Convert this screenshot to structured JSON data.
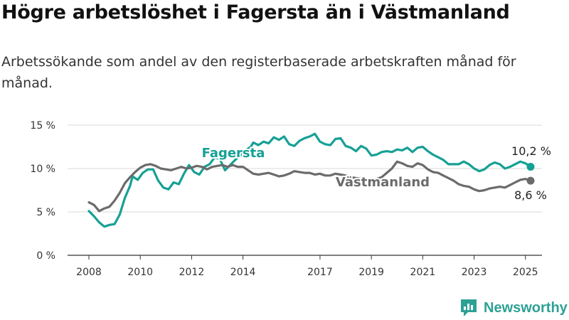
{
  "title": "Högre arbetslöshet i Fagersta än i Västmanland",
  "subtitle": "Arbetssökande som andel av den registerbaserade arbetskraften månad för månad.",
  "brand": {
    "name": "Newsworthy",
    "color": "#2ea195"
  },
  "chart_data": {
    "type": "line",
    "x_ticks": [
      "2008",
      "2010",
      "2012",
      "2014",
      "2017",
      "2019",
      "2021",
      "2023",
      "2025"
    ],
    "y_ticks": [
      "0 %",
      "5 %",
      "10 %",
      "15 %"
    ],
    "ylim": [
      0,
      15
    ],
    "grid": true,
    "series": [
      {
        "name": "Fagersta",
        "color": "#16a095",
        "end_label": "10,2 %",
        "points": [
          [
            2008.0,
            5.1
          ],
          [
            2008.2,
            4.5
          ],
          [
            2008.4,
            3.8
          ],
          [
            2008.6,
            3.3
          ],
          [
            2008.8,
            3.5
          ],
          [
            2009.0,
            3.6
          ],
          [
            2009.2,
            4.7
          ],
          [
            2009.4,
            6.6
          ],
          [
            2009.6,
            8.0
          ],
          [
            2009.7,
            9.1
          ],
          [
            2009.9,
            8.7
          ],
          [
            2010.1,
            9.5
          ],
          [
            2010.3,
            9.9
          ],
          [
            2010.5,
            9.9
          ],
          [
            2010.7,
            8.6
          ],
          [
            2010.9,
            7.8
          ],
          [
            2011.1,
            7.6
          ],
          [
            2011.3,
            8.4
          ],
          [
            2011.5,
            8.2
          ],
          [
            2011.7,
            9.4
          ],
          [
            2011.9,
            10.4
          ],
          [
            2012.1,
            9.6
          ],
          [
            2012.3,
            9.3
          ],
          [
            2012.5,
            10.2
          ],
          [
            2012.7,
            10.5
          ],
          [
            2012.9,
            11.3
          ],
          [
            2013.1,
            11.1
          ],
          [
            2013.3,
            9.8
          ],
          [
            2013.5,
            10.4
          ],
          [
            2013.7,
            11.0
          ],
          [
            2013.9,
            11.5
          ],
          [
            2014.1,
            12.1
          ],
          [
            2014.3,
            12.5
          ],
          [
            2014.4,
            13.0
          ],
          [
            2014.6,
            12.7
          ],
          [
            2014.8,
            13.1
          ],
          [
            2015.0,
            12.9
          ],
          [
            2015.2,
            13.6
          ],
          [
            2015.4,
            13.3
          ],
          [
            2015.6,
            13.7
          ],
          [
            2015.8,
            12.8
          ],
          [
            2016.0,
            12.6
          ],
          [
            2016.2,
            13.2
          ],
          [
            2016.4,
            13.5
          ],
          [
            2016.6,
            13.7
          ],
          [
            2016.8,
            14.0
          ],
          [
            2017.0,
            13.1
          ],
          [
            2017.2,
            12.8
          ],
          [
            2017.4,
            12.7
          ],
          [
            2017.6,
            13.4
          ],
          [
            2017.8,
            13.5
          ],
          [
            2018.0,
            12.6
          ],
          [
            2018.2,
            12.4
          ],
          [
            2018.4,
            12.0
          ],
          [
            2018.6,
            12.6
          ],
          [
            2018.8,
            12.3
          ],
          [
            2019.0,
            11.5
          ],
          [
            2019.2,
            11.6
          ],
          [
            2019.4,
            11.9
          ],
          [
            2019.6,
            12.0
          ],
          [
            2019.8,
            11.9
          ],
          [
            2020.0,
            12.2
          ],
          [
            2020.2,
            12.1
          ],
          [
            2020.4,
            12.4
          ],
          [
            2020.6,
            11.9
          ],
          [
            2020.8,
            12.4
          ],
          [
            2021.0,
            12.5
          ],
          [
            2021.2,
            12.0
          ],
          [
            2021.4,
            11.6
          ],
          [
            2021.6,
            11.3
          ],
          [
            2021.8,
            11.0
          ],
          [
            2022.0,
            10.5
          ],
          [
            2022.2,
            10.5
          ],
          [
            2022.4,
            10.5
          ],
          [
            2022.6,
            10.8
          ],
          [
            2022.8,
            10.5
          ],
          [
            2023.0,
            10.0
          ],
          [
            2023.2,
            9.7
          ],
          [
            2023.4,
            9.9
          ],
          [
            2023.6,
            10.4
          ],
          [
            2023.8,
            10.7
          ],
          [
            2024.0,
            10.5
          ],
          [
            2024.2,
            10.0
          ],
          [
            2024.4,
            10.2
          ],
          [
            2024.6,
            10.5
          ],
          [
            2024.8,
            10.8
          ],
          [
            2025.0,
            10.6
          ],
          [
            2025.2,
            10.2
          ]
        ]
      },
      {
        "name": "Västmanland",
        "color": "#6b6b6b",
        "end_label": "8,6 %",
        "points": [
          [
            2008.0,
            6.1
          ],
          [
            2008.2,
            5.8
          ],
          [
            2008.4,
            5.1
          ],
          [
            2008.6,
            5.4
          ],
          [
            2008.8,
            5.6
          ],
          [
            2009.0,
            6.3
          ],
          [
            2009.2,
            7.2
          ],
          [
            2009.4,
            8.3
          ],
          [
            2009.6,
            9.0
          ],
          [
            2009.8,
            9.6
          ],
          [
            2010.0,
            10.1
          ],
          [
            2010.2,
            10.4
          ],
          [
            2010.4,
            10.5
          ],
          [
            2010.6,
            10.3
          ],
          [
            2010.8,
            10.0
          ],
          [
            2011.0,
            9.9
          ],
          [
            2011.2,
            9.8
          ],
          [
            2011.4,
            10.0
          ],
          [
            2011.6,
            10.2
          ],
          [
            2011.8,
            10.0
          ],
          [
            2012.0,
            10.1
          ],
          [
            2012.2,
            10.3
          ],
          [
            2012.4,
            10.2
          ],
          [
            2012.6,
            9.9
          ],
          [
            2012.8,
            10.2
          ],
          [
            2013.0,
            10.3
          ],
          [
            2013.2,
            10.4
          ],
          [
            2013.4,
            10.2
          ],
          [
            2013.6,
            10.4
          ],
          [
            2013.8,
            10.2
          ],
          [
            2014.0,
            10.2
          ],
          [
            2014.2,
            9.8
          ],
          [
            2014.4,
            9.4
          ],
          [
            2014.6,
            9.3
          ],
          [
            2014.8,
            9.4
          ],
          [
            2015.0,
            9.5
          ],
          [
            2015.2,
            9.3
          ],
          [
            2015.4,
            9.1
          ],
          [
            2015.6,
            9.2
          ],
          [
            2015.8,
            9.4
          ],
          [
            2016.0,
            9.7
          ],
          [
            2016.2,
            9.6
          ],
          [
            2016.4,
            9.5
          ],
          [
            2016.6,
            9.5
          ],
          [
            2016.8,
            9.3
          ],
          [
            2017.0,
            9.4
          ],
          [
            2017.2,
            9.2
          ],
          [
            2017.4,
            9.2
          ],
          [
            2017.6,
            9.4
          ],
          [
            2017.8,
            9.3
          ],
          [
            2018.0,
            9.2
          ],
          [
            2018.2,
            9.0
          ],
          [
            2018.4,
            8.9
          ],
          [
            2018.6,
            8.8
          ],
          [
            2018.8,
            8.7
          ],
          [
            2019.0,
            8.6
          ],
          [
            2019.2,
            8.8
          ],
          [
            2019.4,
            9.0
          ],
          [
            2019.6,
            9.5
          ],
          [
            2019.8,
            10.0
          ],
          [
            2020.0,
            10.8
          ],
          [
            2020.2,
            10.6
          ],
          [
            2020.4,
            10.3
          ],
          [
            2020.6,
            10.2
          ],
          [
            2020.8,
            10.6
          ],
          [
            2021.0,
            10.4
          ],
          [
            2021.2,
            9.9
          ],
          [
            2021.4,
            9.6
          ],
          [
            2021.6,
            9.5
          ],
          [
            2021.8,
            9.2
          ],
          [
            2022.0,
            8.9
          ],
          [
            2022.2,
            8.6
          ],
          [
            2022.4,
            8.2
          ],
          [
            2022.6,
            8.0
          ],
          [
            2022.8,
            7.9
          ],
          [
            2023.0,
            7.6
          ],
          [
            2023.2,
            7.4
          ],
          [
            2023.4,
            7.5
          ],
          [
            2023.6,
            7.7
          ],
          [
            2023.8,
            7.8
          ],
          [
            2024.0,
            7.9
          ],
          [
            2024.2,
            7.8
          ],
          [
            2024.4,
            8.1
          ],
          [
            2024.6,
            8.4
          ],
          [
            2024.8,
            8.7
          ],
          [
            2025.0,
            8.8
          ],
          [
            2025.2,
            8.6
          ]
        ]
      }
    ]
  }
}
